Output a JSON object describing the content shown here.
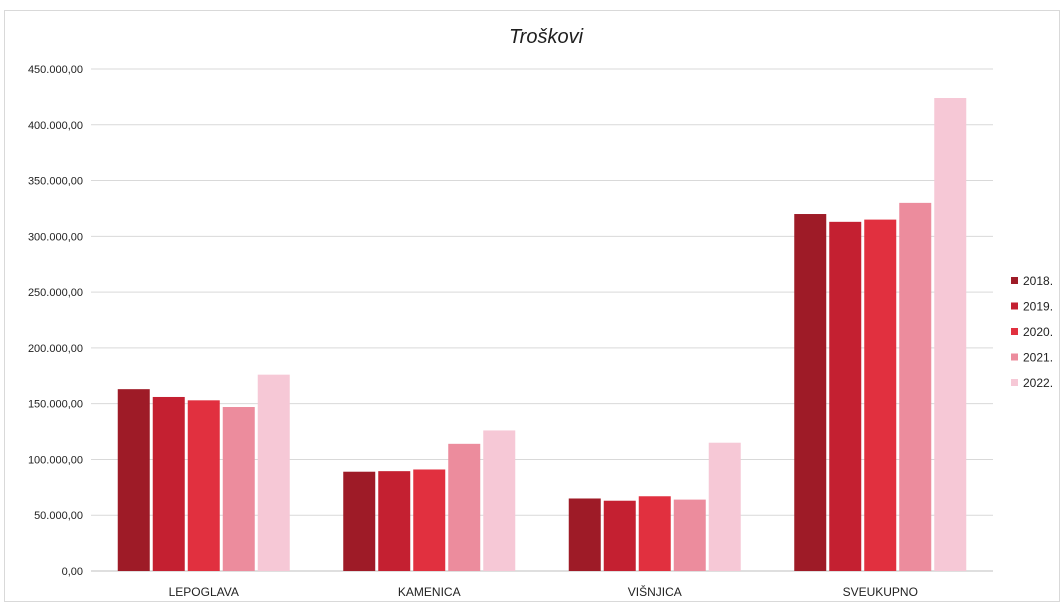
{
  "chart_data": {
    "type": "bar",
    "title": "Troškovi",
    "xlabel": "",
    "ylabel": "",
    "categories": [
      "LEPOGLAVA",
      "KAMENICA",
      "VIŠNJICA",
      "SVEUKUPNO"
    ],
    "series": [
      {
        "name": "2018.",
        "color": "#9e1b27",
        "values": [
          163000,
          89000,
          65000,
          320000
        ]
      },
      {
        "name": "2019.",
        "color": "#c42031",
        "values": [
          156000,
          89500,
          63000,
          313000
        ]
      },
      {
        "name": "2020.",
        "color": "#e1303f",
        "values": [
          153000,
          91000,
          67000,
          315000
        ]
      },
      {
        "name": "2021.",
        "color": "#ec8c9d",
        "values": [
          147000,
          114000,
          64000,
          330000
        ]
      },
      {
        "name": "2022.",
        "color": "#f6c8d6",
        "values": [
          176000,
          126000,
          115000,
          424000
        ]
      }
    ],
    "ylim": [
      0,
      450000
    ],
    "yticks": [
      0,
      50000,
      100000,
      150000,
      200000,
      250000,
      300000,
      350000,
      400000,
      450000
    ],
    "ytick_labels": [
      "0,00",
      "50.000,00",
      "100.000,00",
      "150.000,00",
      "200.000,00",
      "250.000,00",
      "300.000,00",
      "350.000,00",
      "400.000,00",
      "450.000,00"
    ],
    "grid": true,
    "legend_position": "right"
  }
}
